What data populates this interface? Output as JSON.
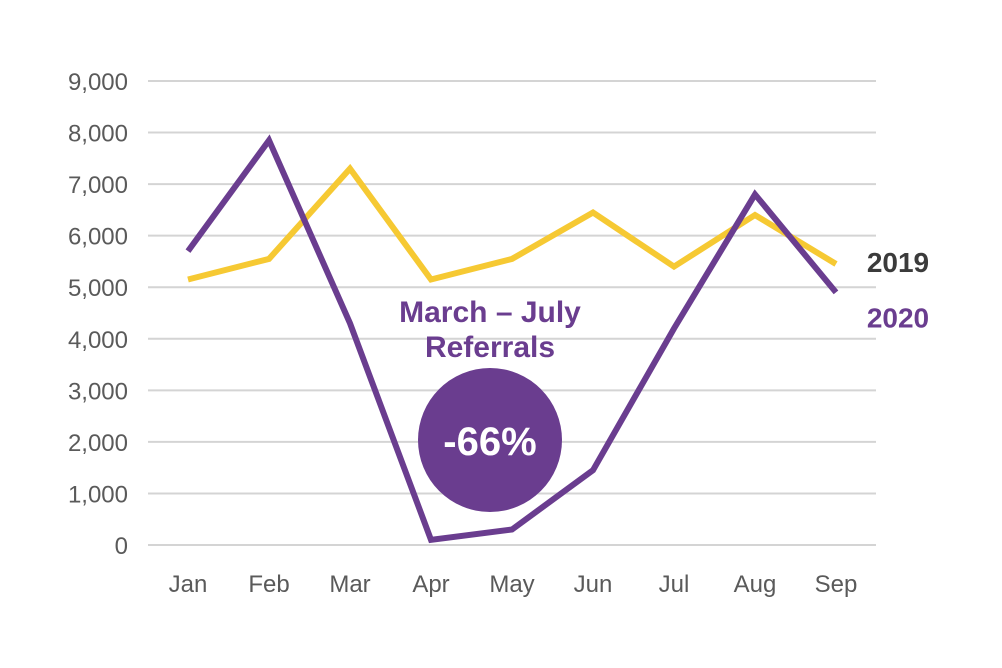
{
  "chart_data": {
    "type": "line",
    "title": "",
    "xlabel": "",
    "ylabel": "",
    "categories": [
      "Jan",
      "Feb",
      "Mar",
      "Apr",
      "May",
      "Jun",
      "Jul",
      "Aug",
      "Sep"
    ],
    "y_ticks": [
      "0",
      "1,000",
      "2,000",
      "3,000",
      "4,000",
      "5,000",
      "6,000",
      "7,000",
      "8,000",
      "9,000"
    ],
    "ylim": [
      0,
      9000
    ],
    "grid": true,
    "series": [
      {
        "name": "2019",
        "color": "#f6c933",
        "values": [
          5150,
          5550,
          7300,
          5150,
          5550,
          6450,
          5400,
          6400,
          5450
        ]
      },
      {
        "name": "2020",
        "color": "#6a3d8f",
        "values": [
          5700,
          7850,
          4300,
          100,
          300,
          1450,
          4200,
          6800,
          4900
        ]
      }
    ],
    "annotation": {
      "lines": [
        "March – July",
        "Referrals"
      ]
    },
    "badge": {
      "text": "-66%",
      "color": "#6a3d8f"
    }
  }
}
